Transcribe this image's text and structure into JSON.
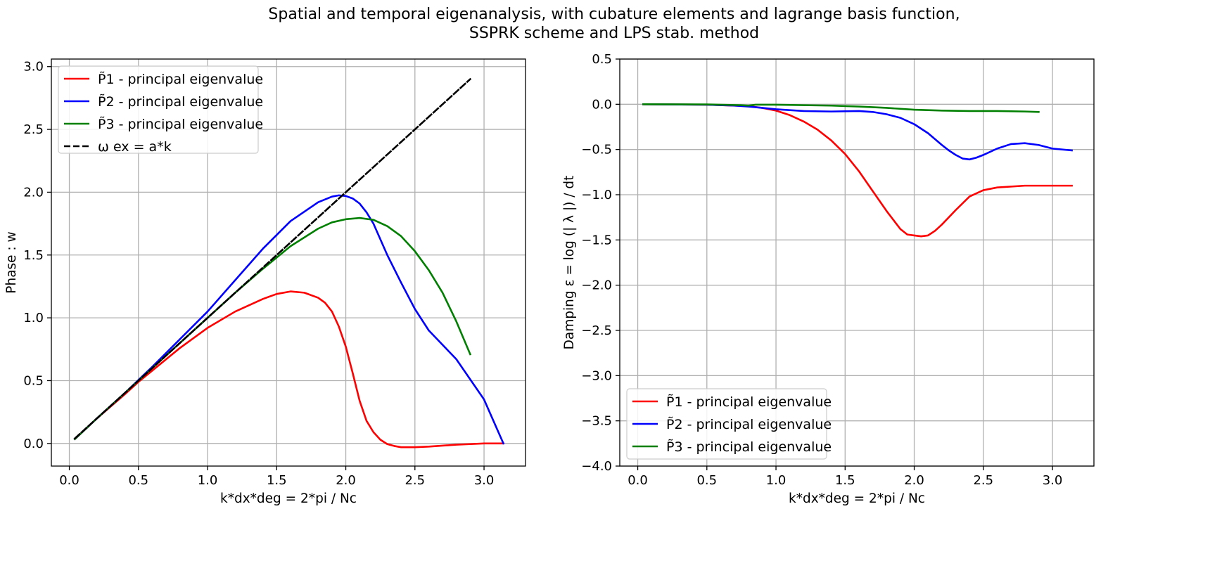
{
  "figure": {
    "title_line1": "Spatial and temporal eigenanalysis, with cubature elements and lagrange basis function,",
    "title_line2": "SSPRK scheme and LPS stab. method"
  },
  "chart_data": [
    {
      "type": "line",
      "xlabel": "k*dx*deg = 2*pi / Nc",
      "ylabel": "Phase : w",
      "xlim": [
        -0.13,
        3.3
      ],
      "ylim": [
        -0.18,
        3.06
      ],
      "xticks": [
        0.0,
        0.5,
        1.0,
        1.5,
        2.0,
        2.5,
        3.0
      ],
      "xtick_labels": [
        "0.0",
        "0.5",
        "1.0",
        "1.5",
        "2.0",
        "2.5",
        "3.0"
      ],
      "yticks": [
        0.0,
        0.5,
        1.0,
        1.5,
        2.0,
        2.5,
        3.0
      ],
      "ytick_labels": [
        "0.0",
        "0.5",
        "1.0",
        "1.5",
        "2.0",
        "2.5",
        "3.0"
      ],
      "grid": true,
      "legend_position": "upper left",
      "series": [
        {
          "name": "P̃1 - principal eigenvalue",
          "color": "#ff0000",
          "style": "solid",
          "x": [
            0.04,
            0.2,
            0.4,
            0.5,
            0.6,
            0.8,
            1.0,
            1.2,
            1.4,
            1.5,
            1.6,
            1.7,
            1.8,
            1.85,
            1.9,
            1.95,
            2.0,
            2.05,
            2.1,
            2.15,
            2.2,
            2.25,
            2.3,
            2.35,
            2.4,
            2.5,
            2.6,
            2.8,
            3.0,
            3.14
          ],
          "y": [
            0.035,
            0.2,
            0.39,
            0.49,
            0.58,
            0.76,
            0.92,
            1.05,
            1.15,
            1.19,
            1.21,
            1.2,
            1.16,
            1.12,
            1.05,
            0.93,
            0.77,
            0.56,
            0.34,
            0.18,
            0.09,
            0.03,
            -0.005,
            -0.02,
            -0.03,
            -0.03,
            -0.025,
            -0.01,
            0.0,
            0.0
          ]
        },
        {
          "name": "P̃2 - principal eigenvalue",
          "color": "#0000ff",
          "style": "solid",
          "x": [
            0.04,
            0.2,
            0.4,
            0.6,
            0.8,
            1.0,
            1.2,
            1.4,
            1.6,
            1.8,
            1.9,
            1.95,
            2.0,
            2.05,
            2.1,
            2.15,
            2.2,
            2.3,
            2.4,
            2.5,
            2.6,
            2.8,
            3.0,
            3.14
          ],
          "y": [
            0.035,
            0.2,
            0.4,
            0.61,
            0.83,
            1.05,
            1.3,
            1.55,
            1.77,
            1.92,
            1.965,
            1.975,
            1.97,
            1.95,
            1.91,
            1.84,
            1.75,
            1.5,
            1.28,
            1.07,
            0.9,
            0.67,
            0.35,
            0.0
          ]
        },
        {
          "name": "P̃3 - principal eigenvalue",
          "color": "#008000",
          "style": "solid",
          "x": [
            0.04,
            0.2,
            0.4,
            0.6,
            0.8,
            1.0,
            1.2,
            1.4,
            1.6,
            1.8,
            1.9,
            2.0,
            2.1,
            2.2,
            2.3,
            2.4,
            2.5,
            2.6,
            2.7,
            2.8,
            2.9
          ],
          "y": [
            0.035,
            0.2,
            0.4,
            0.6,
            0.8,
            1.0,
            1.2,
            1.39,
            1.57,
            1.71,
            1.76,
            1.785,
            1.795,
            1.78,
            1.73,
            1.65,
            1.53,
            1.38,
            1.2,
            0.97,
            0.71
          ]
        },
        {
          "name": "ω ex = a*k",
          "color": "#000000",
          "style": "dashed",
          "x": [
            0.04,
            2.9
          ],
          "y": [
            0.04,
            2.9
          ]
        }
      ]
    },
    {
      "type": "line",
      "xlabel": "k*dx*deg = 2*pi / Nc",
      "ylabel": "Damping ε = log (| λ |) / dt",
      "xlim": [
        -0.13,
        3.3
      ],
      "ylim": [
        -4.0,
        0.5
      ],
      "xticks": [
        0.0,
        0.5,
        1.0,
        1.5,
        2.0,
        2.5,
        3.0
      ],
      "xtick_labels": [
        "0.0",
        "0.5",
        "1.0",
        "1.5",
        "2.0",
        "2.5",
        "3.0"
      ],
      "yticks": [
        0.5,
        0.0,
        -0.5,
        -1.0,
        -1.5,
        -2.0,
        -2.5,
        -3.0,
        -3.5,
        -4.0
      ],
      "ytick_labels": [
        "0.5",
        "0.0",
        "−0.5",
        "−1.0",
        "−1.5",
        "−2.0",
        "−2.5",
        "−3.0",
        "−3.5",
        "−4.0"
      ],
      "grid": true,
      "legend_position": "lower left",
      "series": [
        {
          "name": "P̃1 - principal eigenvalue",
          "color": "#ff0000",
          "style": "solid",
          "x": [
            0.04,
            0.5,
            0.8,
            0.9,
            1.0,
            1.1,
            1.2,
            1.3,
            1.4,
            1.5,
            1.6,
            1.7,
            1.8,
            1.9,
            1.95,
            2.0,
            2.05,
            2.1,
            2.15,
            2.2,
            2.3,
            2.4,
            2.5,
            2.6,
            2.8,
            3.0,
            3.14
          ],
          "y": [
            0.0,
            -0.005,
            -0.02,
            -0.04,
            -0.07,
            -0.12,
            -0.19,
            -0.28,
            -0.4,
            -0.55,
            -0.74,
            -0.96,
            -1.18,
            -1.38,
            -1.44,
            -1.45,
            -1.46,
            -1.45,
            -1.4,
            -1.33,
            -1.17,
            -1.02,
            -0.95,
            -0.92,
            -0.9,
            -0.9,
            -0.9
          ]
        },
        {
          "name": "P̃2 - principal eigenvalue",
          "color": "#0000ff",
          "style": "solid",
          "x": [
            0.04,
            0.5,
            0.7,
            0.8,
            0.9,
            1.0,
            1.2,
            1.4,
            1.6,
            1.7,
            1.8,
            1.9,
            2.0,
            2.1,
            2.2,
            2.25,
            2.3,
            2.35,
            2.4,
            2.45,
            2.5,
            2.6,
            2.7,
            2.8,
            2.9,
            3.0,
            3.14
          ],
          "y": [
            0.0,
            -0.005,
            -0.015,
            -0.025,
            -0.04,
            -0.055,
            -0.075,
            -0.08,
            -0.075,
            -0.085,
            -0.11,
            -0.15,
            -0.22,
            -0.32,
            -0.45,
            -0.51,
            -0.56,
            -0.6,
            -0.61,
            -0.59,
            -0.56,
            -0.49,
            -0.44,
            -0.43,
            -0.45,
            -0.49,
            -0.51
          ]
        },
        {
          "name": "P̃3 - principal eigenvalue",
          "color": "#008000",
          "style": "solid",
          "x": [
            0.04,
            0.5,
            0.75,
            0.8,
            0.85,
            1.0,
            1.2,
            1.4,
            1.6,
            1.8,
            2.0,
            2.2,
            2.4,
            2.6,
            2.8,
            2.9
          ],
          "y": [
            0.0,
            -0.002,
            -0.01,
            -0.015,
            -0.005,
            -0.005,
            -0.01,
            -0.015,
            -0.025,
            -0.04,
            -0.06,
            -0.07,
            -0.075,
            -0.075,
            -0.08,
            -0.085
          ]
        }
      ]
    }
  ]
}
